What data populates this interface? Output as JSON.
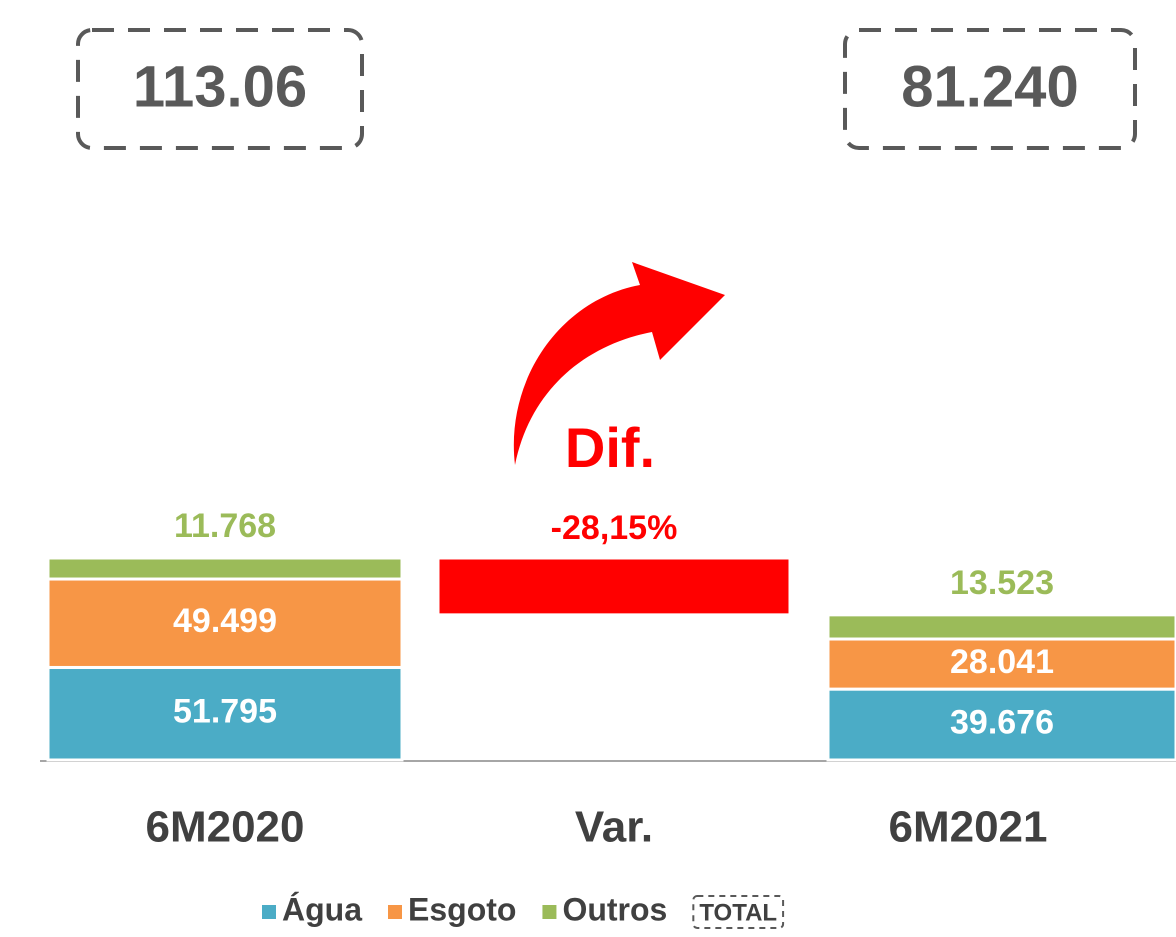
{
  "chart_data": {
    "type": "bar",
    "stacked": true,
    "categories": [
      "6M2020",
      "Var.",
      "6M2021"
    ],
    "series": [
      {
        "name": "Água",
        "color": "#4bacc6",
        "values": [
          51795,
          null,
          39676
        ],
        "value_labels": [
          "51.795",
          null,
          "39.676"
        ]
      },
      {
        "name": "Esgoto",
        "color": "#f79646",
        "values": [
          49499,
          null,
          28041
        ],
        "value_labels": [
          "49.499",
          null,
          "28.041"
        ]
      },
      {
        "name": "Outros",
        "color": "#9bbb59",
        "values": [
          11768,
          null,
          13523
        ],
        "value_labels": [
          "11.768",
          null,
          "13.523"
        ]
      }
    ],
    "totals_name": "TOTAL",
    "totals": [
      {
        "value": 113062,
        "label": "113.06"
      },
      null,
      {
        "value": 81240,
        "label": "81.240"
      }
    ],
    "variation": {
      "value": -28.15,
      "label": "-28,15%",
      "color": "#ff0000"
    },
    "annotation": "Dif."
  }
}
